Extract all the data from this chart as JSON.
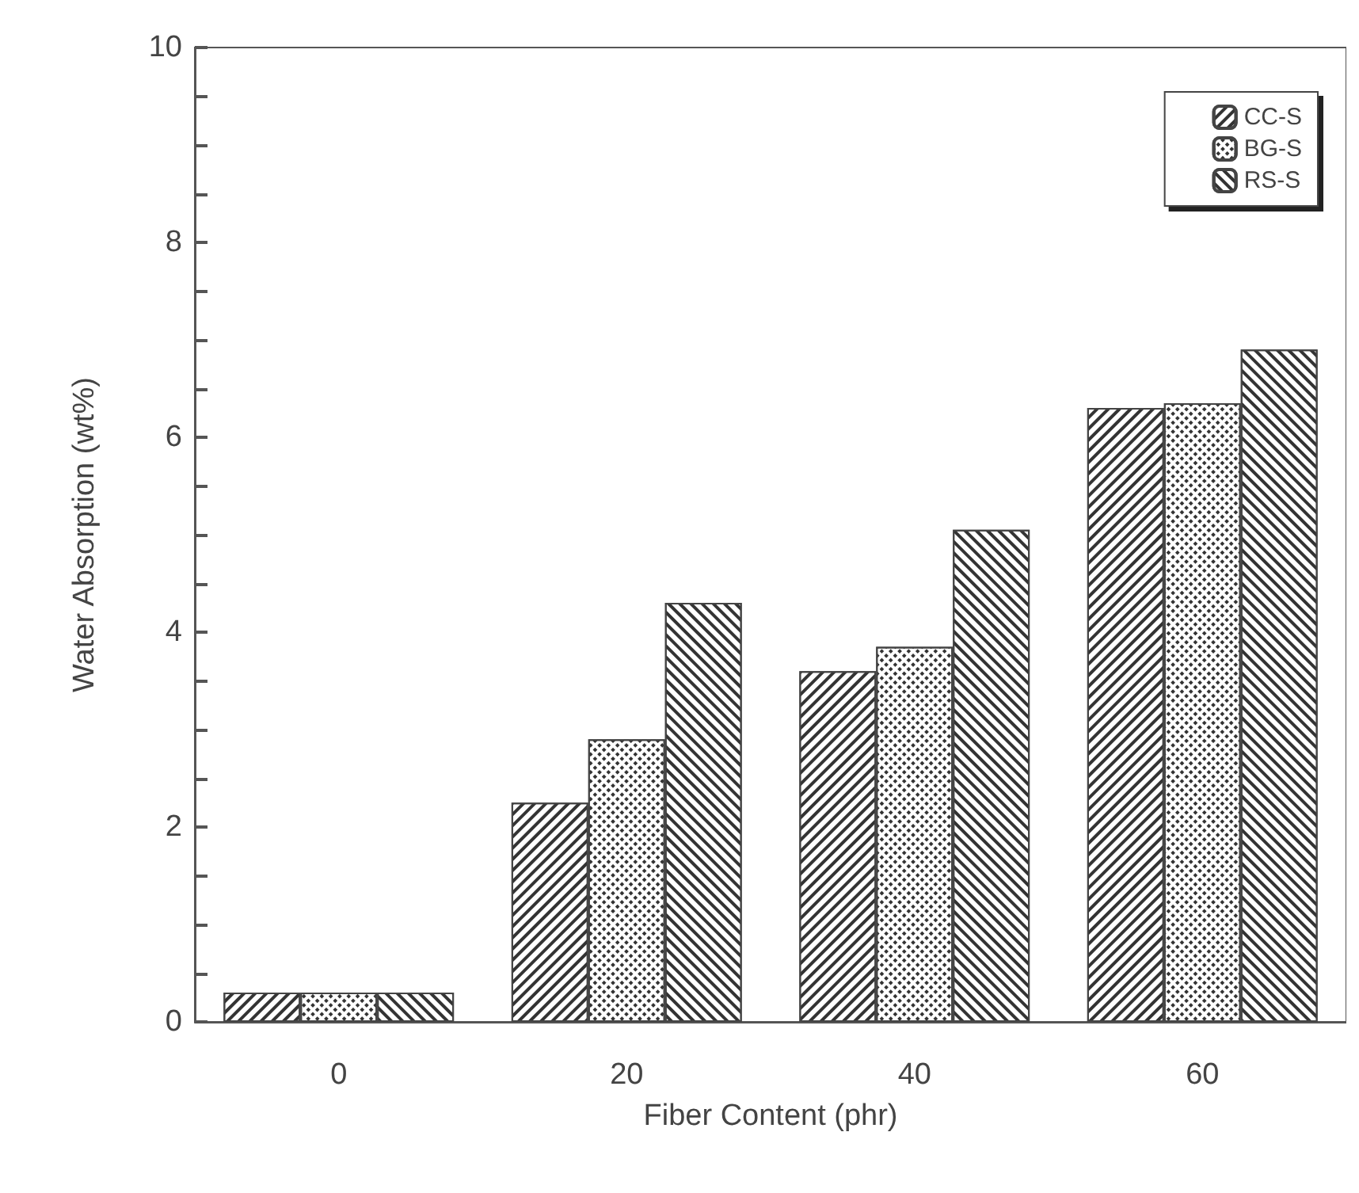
{
  "chart_data": {
    "type": "bar",
    "xlabel": "Fiber Content (phr)",
    "ylabel": "Water Absorption (wt%)",
    "categories": [
      "0",
      "20",
      "40",
      "60"
    ],
    "series": [
      {
        "name": "CC-S",
        "color": "#ffffff",
        "values": [
          0.3,
          2.25,
          3.6,
          6.3
        ]
      },
      {
        "name": "BG-S",
        "color": "#ffffff",
        "values": [
          0.3,
          2.9,
          3.85,
          6.35
        ]
      },
      {
        "name": "RS-S",
        "color": "#ffffff",
        "values": [
          0.3,
          4.3,
          5.05,
          6.9
        ]
      }
    ],
    "ylim": [
      0,
      10
    ],
    "yticks": [
      0,
      2,
      4,
      6,
      8,
      10
    ],
    "grid": false,
    "legend": "top right"
  }
}
